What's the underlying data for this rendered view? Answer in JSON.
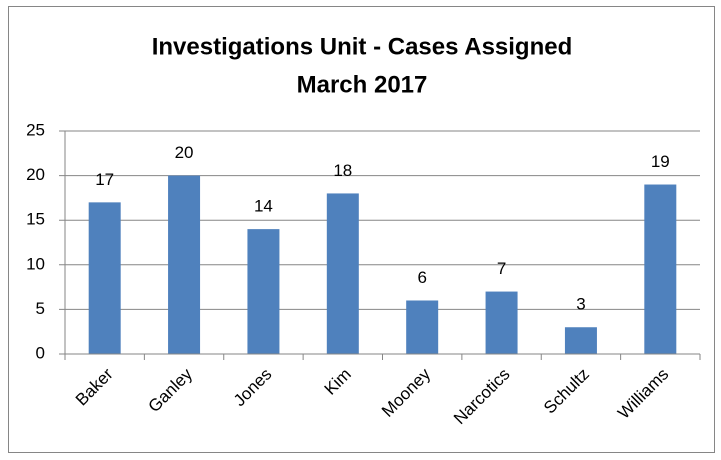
{
  "chart_data": {
    "type": "bar",
    "title": "Investigations Unit - Cases Assigned",
    "subtitle": "March 2017",
    "categories": [
      "Baker",
      "Ganley",
      "Jones",
      "Kim",
      "Mooney",
      "Narcotics",
      "Schultz",
      "Williams"
    ],
    "values": [
      17,
      20,
      14,
      18,
      6,
      7,
      3,
      19
    ],
    "color": "#4f81bd",
    "ylim": [
      0,
      25
    ],
    "yticks": [
      0,
      5,
      10,
      15,
      20,
      25
    ],
    "grid": true
  }
}
